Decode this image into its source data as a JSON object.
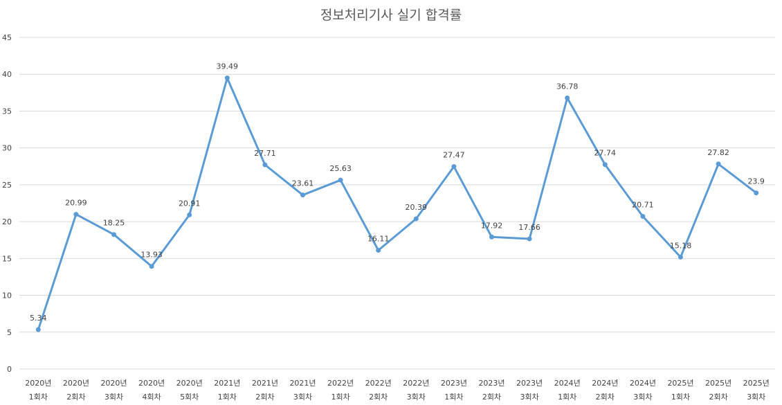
{
  "chart_data": {
    "type": "line",
    "title": "정보처리기사 실기 합격률",
    "xlabel": "",
    "ylabel": "",
    "ylim": [
      0,
      45
    ],
    "yticks": [
      0,
      5,
      10,
      15,
      20,
      25,
      30,
      35,
      40,
      45
    ],
    "grid": true,
    "categories": [
      [
        "2020년",
        "1회차"
      ],
      [
        "2020년",
        "2회차"
      ],
      [
        "2020년",
        "3회차"
      ],
      [
        "2020년",
        "4회차"
      ],
      [
        "2020년",
        "5회차"
      ],
      [
        "2021년",
        "1회차"
      ],
      [
        "2021년",
        "2회차"
      ],
      [
        "2021년",
        "3회차"
      ],
      [
        "2022년",
        "1회차"
      ],
      [
        "2022년",
        "2회차"
      ],
      [
        "2022년",
        "3회차"
      ],
      [
        "2023년",
        "1회차"
      ],
      [
        "2023년",
        "2회차"
      ],
      [
        "2023년",
        "3회차"
      ],
      [
        "2024년",
        "1회차"
      ],
      [
        "2024년",
        "2회차"
      ],
      [
        "2024년",
        "3회차"
      ],
      [
        "2025년",
        "1회차"
      ],
      [
        "2025년",
        "2회차"
      ],
      [
        "2025년",
        "3회차"
      ]
    ],
    "series": [
      {
        "values": [
          5.34,
          20.99,
          18.25,
          13.93,
          20.91,
          39.49,
          27.71,
          23.61,
          25.63,
          16.11,
          20.39,
          27.47,
          17.92,
          17.66,
          36.78,
          27.74,
          20.71,
          15.18,
          27.82,
          23.9
        ],
        "color": "#5b9bd5"
      }
    ]
  }
}
